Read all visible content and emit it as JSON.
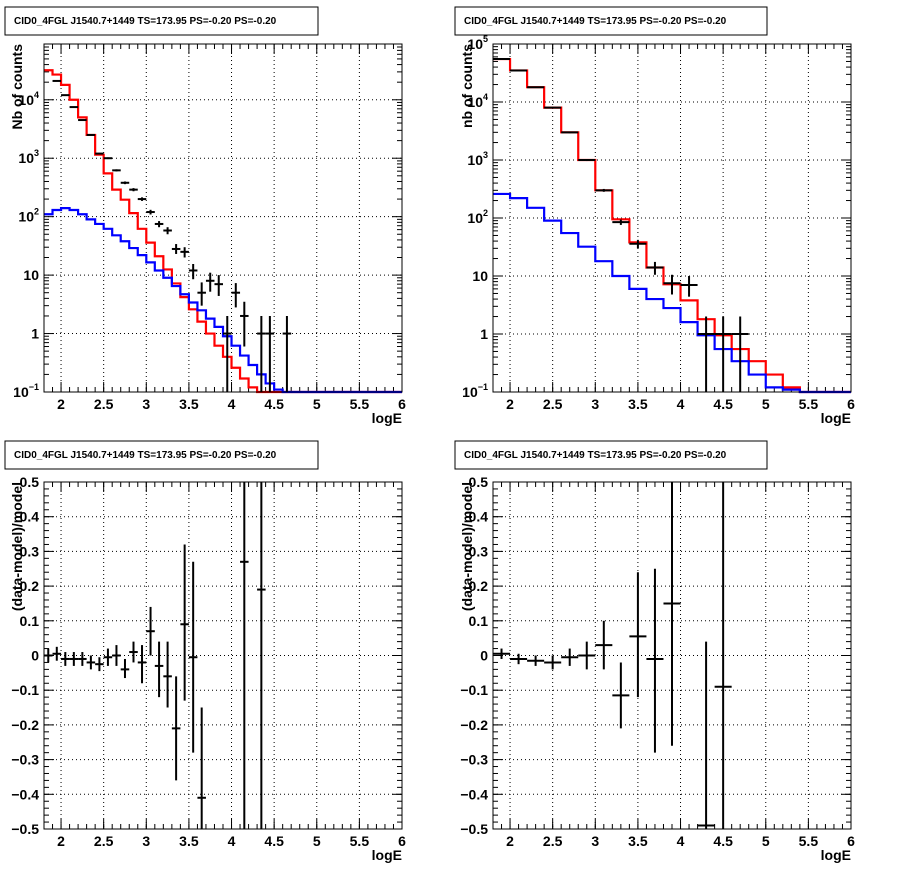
{
  "chart_data": [
    {
      "type": "histogram",
      "title": "CID0_4FGL J1540.7+1449 TS=173.95 PS=-0.20 PS=-0.20",
      "xlabel": "logE",
      "ylabel": "Nb of counts",
      "xlim": [
        1.8,
        6.0
      ],
      "ylim": [
        0.1,
        90000
      ],
      "yscale": "log",
      "grid": true,
      "x_tick_labels": [
        "2",
        "2.5",
        "3",
        "3.5",
        "4",
        "4.5",
        "5",
        "5.5",
        "6"
      ],
      "y_tick_labels": [
        {
          "v": 0.1,
          "base": "10",
          "exp": "−1"
        },
        {
          "v": 1,
          "base": "1",
          "exp": ""
        },
        {
          "v": 10,
          "base": "10",
          "exp": ""
        },
        {
          "v": 100,
          "base": "10",
          "exp": "2"
        },
        {
          "v": 1000,
          "base": "10",
          "exp": "3"
        },
        {
          "v": 10000,
          "base": "10",
          "exp": "4"
        }
      ],
      "bin_edges": [
        1.8,
        1.9,
        2.0,
        2.1,
        2.2,
        2.3,
        2.4,
        2.5,
        2.6,
        2.7,
        2.8,
        2.9,
        3.0,
        3.1,
        3.2,
        3.3,
        3.4,
        3.5,
        3.6,
        3.7,
        3.8,
        3.9,
        4.0,
        4.1,
        4.2,
        4.3,
        4.4,
        4.5,
        4.6,
        4.7,
        4.8,
        4.9,
        5.0,
        5.1,
        5.2,
        5.3,
        5.4,
        5.5,
        5.6,
        5.7,
        5.8,
        5.9,
        6.0
      ],
      "series": [
        {
          "color": "#ff0000",
          "values": [
            32000,
            27000,
            18000,
            10000,
            5000,
            2500,
            1150,
            550,
            290,
            195,
            115,
            62,
            36,
            21,
            12.5,
            7.2,
            4.2,
            2.6,
            1.6,
            1.0,
            0.62,
            0.4,
            0.26,
            0.17,
            0.12,
            0.1,
            0.1,
            0.1,
            0.1,
            0.1,
            0.1,
            0.1,
            0.1,
            0.1,
            0.1,
            0.1,
            0.1,
            0.1,
            0.1,
            0.1,
            0.1,
            0.1
          ]
        },
        {
          "color": "#0000ff",
          "values": [
            110,
            130,
            140,
            130,
            110,
            90,
            75,
            62,
            48,
            38,
            29,
            22,
            16.5,
            12,
            9,
            6.5,
            4.7,
            3.4,
            2.5,
            1.8,
            1.3,
            0.9,
            0.62,
            0.42,
            0.29,
            0.2,
            0.14,
            0.11,
            0.1,
            0.1,
            0.1,
            0.1,
            0.1,
            0.1,
            0.1,
            0.1,
            0.1,
            0.1,
            0.1,
            0.1,
            0.1,
            0.1
          ]
        }
      ],
      "data_points": [
        {
          "x": 1.95,
          "y": 21000,
          "ylo": 20700,
          "yhi": 21300
        },
        {
          "x": 2.05,
          "y": 12000,
          "ylo": 11800,
          "yhi": 12200
        },
        {
          "x": 2.15,
          "y": 7500,
          "ylo": 7350,
          "yhi": 7650
        },
        {
          "x": 2.25,
          "y": 4500,
          "ylo": 4400,
          "yhi": 4600
        },
        {
          "x": 2.35,
          "y": 2500,
          "ylo": 2440,
          "yhi": 2560
        },
        {
          "x": 2.45,
          "y": 1200,
          "ylo": 1165,
          "yhi": 1235
        },
        {
          "x": 2.55,
          "y": 1000,
          "ylo": 968,
          "yhi": 1032
        },
        {
          "x": 2.65,
          "y": 620,
          "ylo": 595,
          "yhi": 645
        },
        {
          "x": 2.75,
          "y": 380,
          "ylo": 360,
          "yhi": 400
        },
        {
          "x": 2.85,
          "y": 290,
          "ylo": 272,
          "yhi": 308
        },
        {
          "x": 2.95,
          "y": 200,
          "ylo": 186,
          "yhi": 214
        },
        {
          "x": 3.05,
          "y": 120,
          "ylo": 109,
          "yhi": 131
        },
        {
          "x": 3.15,
          "y": 75,
          "ylo": 66,
          "yhi": 84
        },
        {
          "x": 3.25,
          "y": 58,
          "ylo": 50,
          "yhi": 66
        },
        {
          "x": 3.35,
          "y": 28,
          "ylo": 23,
          "yhi": 34
        },
        {
          "x": 3.45,
          "y": 25,
          "ylo": 20,
          "yhi": 30
        },
        {
          "x": 3.55,
          "y": 12,
          "ylo": 8.5,
          "yhi": 15.5
        },
        {
          "x": 3.65,
          "y": 5,
          "ylo": 3,
          "yhi": 7.5
        },
        {
          "x": 3.75,
          "y": 8,
          "ylo": 5.2,
          "yhi": 11
        },
        {
          "x": 3.85,
          "y": 7,
          "ylo": 4.4,
          "yhi": 10
        },
        {
          "x": 3.95,
          "y": 1,
          "ylo": 0.1,
          "yhi": 2
        },
        {
          "x": 4.05,
          "y": 5,
          "ylo": 2.8,
          "yhi": 7.3
        },
        {
          "x": 4.15,
          "y": 2,
          "ylo": 0.6,
          "yhi": 3.5
        },
        {
          "x": 4.35,
          "y": 1,
          "ylo": 0.1,
          "yhi": 2
        },
        {
          "x": 4.45,
          "y": 1,
          "ylo": 0.1,
          "yhi": 2
        },
        {
          "x": 4.65,
          "y": 1,
          "ylo": 0.1,
          "yhi": 2
        }
      ]
    },
    {
      "type": "histogram",
      "title": "CID0_4FGL J1540.7+1449 TS=173.95 PS=-0.20 PS=-0.20",
      "xlabel": "logE",
      "ylabel": "nb of counts",
      "xlim": [
        1.8,
        6.0
      ],
      "ylim": [
        0.1,
        100000
      ],
      "yscale": "log",
      "grid": true,
      "x_tick_labels": [
        "2",
        "2.5",
        "3",
        "3.5",
        "4",
        "4.5",
        "5",
        "5.5",
        "6"
      ],
      "y_tick_labels": [
        {
          "v": 0.1,
          "base": "10",
          "exp": "−1"
        },
        {
          "v": 1,
          "base": "1",
          "exp": ""
        },
        {
          "v": 10,
          "base": "10",
          "exp": ""
        },
        {
          "v": 100,
          "base": "10",
          "exp": "2"
        },
        {
          "v": 1000,
          "base": "10",
          "exp": "3"
        },
        {
          "v": 10000,
          "base": "10",
          "exp": "4"
        },
        {
          "v": 100000,
          "base": "10",
          "exp": "5"
        }
      ],
      "bin_edges": [
        1.8,
        2.0,
        2.2,
        2.4,
        2.6,
        2.8,
        3.0,
        3.2,
        3.4,
        3.6,
        3.8,
        4.0,
        4.2,
        4.4,
        4.6,
        4.8,
        5.0,
        5.2,
        5.4,
        5.6,
        5.8,
        6.0
      ],
      "series": [
        {
          "color": "#ff0000",
          "values": [
            55000,
            35000,
            18000,
            8000,
            3000,
            1000,
            300,
            95,
            38,
            14,
            7.2,
            3.8,
            1.8,
            0.95,
            0.55,
            0.34,
            0.2,
            0.12,
            0.1,
            0.1,
            0.1
          ]
        },
        {
          "color": "#0000ff",
          "values": [
            260,
            220,
            150,
            90,
            55,
            32,
            18,
            10,
            6,
            4,
            2.8,
            1.6,
            0.95,
            0.55,
            0.34,
            0.2,
            0.12,
            0.11,
            0.1,
            0.1,
            0.1
          ]
        }
      ],
      "data_points": [
        {
          "x": 1.9,
          "y": 55000,
          "ylo": 54500,
          "yhi": 55500
        },
        {
          "x": 2.1,
          "y": 35000,
          "ylo": 34600,
          "yhi": 35400
        },
        {
          "x": 2.3,
          "y": 18000,
          "ylo": 17700,
          "yhi": 18300
        },
        {
          "x": 2.5,
          "y": 8000,
          "ylo": 7800,
          "yhi": 8200
        },
        {
          "x": 2.7,
          "y": 3000,
          "ylo": 2900,
          "yhi": 3100
        },
        {
          "x": 2.9,
          "y": 1000,
          "ylo": 960,
          "yhi": 1040
        },
        {
          "x": 3.1,
          "y": 300,
          "ylo": 283,
          "yhi": 317
        },
        {
          "x": 3.3,
          "y": 85,
          "ylo": 76,
          "yhi": 94
        },
        {
          "x": 3.5,
          "y": 36,
          "ylo": 30,
          "yhi": 42
        },
        {
          "x": 3.7,
          "y": 14,
          "ylo": 10.5,
          "yhi": 17.5
        },
        {
          "x": 3.9,
          "y": 7.5,
          "ylo": 4.8,
          "yhi": 10.5
        },
        {
          "x": 4.1,
          "y": 7,
          "ylo": 4.4,
          "yhi": 10
        },
        {
          "x": 4.3,
          "y": 1,
          "ylo": 0.1,
          "yhi": 2
        },
        {
          "x": 4.5,
          "y": 1,
          "ylo": 0.1,
          "yhi": 2
        },
        {
          "x": 4.7,
          "y": 1,
          "ylo": 0.1,
          "yhi": 2
        }
      ]
    },
    {
      "type": "scatter",
      "title": "CID0_4FGL J1540.7+1449 TS=173.95 PS=-0.20 PS=-0.20",
      "xlabel": "logE",
      "ylabel": "(data-model)/model",
      "xlim": [
        1.8,
        6.0
      ],
      "ylim": [
        -0.5,
        0.5
      ],
      "grid": true,
      "x_tick_labels": [
        "2",
        "2.5",
        "3",
        "3.5",
        "4",
        "4.5",
        "5",
        "5.5",
        "6"
      ],
      "y_tick_labels": [
        "−0.5",
        "−0.4",
        "−0.3",
        "−0.2",
        "−0.1",
        "0",
        "0.1",
        "0.2",
        "0.3",
        "0.4",
        "0.5"
      ],
      "points": [
        {
          "x": 1.85,
          "y": 0.0,
          "xerr": 0.05,
          "ylo": -0.02,
          "yhi": 0.02
        },
        {
          "x": 1.95,
          "y": 0.005,
          "xerr": 0.05,
          "ylo": -0.015,
          "yhi": 0.025
        },
        {
          "x": 2.05,
          "y": -0.01,
          "xerr": 0.05,
          "ylo": -0.03,
          "yhi": 0.01
        },
        {
          "x": 2.15,
          "y": -0.01,
          "xerr": 0.05,
          "ylo": -0.03,
          "yhi": 0.01
        },
        {
          "x": 2.25,
          "y": -0.01,
          "xerr": 0.05,
          "ylo": -0.03,
          "yhi": 0.01
        },
        {
          "x": 2.35,
          "y": -0.02,
          "xerr": 0.05,
          "ylo": -0.04,
          "yhi": 0.0
        },
        {
          "x": 2.45,
          "y": -0.025,
          "xerr": 0.05,
          "ylo": -0.045,
          "yhi": -0.005
        },
        {
          "x": 2.55,
          "y": -0.005,
          "xerr": 0.05,
          "ylo": -0.03,
          "yhi": 0.02
        },
        {
          "x": 2.65,
          "y": 0.0,
          "xerr": 0.05,
          "ylo": -0.03,
          "yhi": 0.03
        },
        {
          "x": 2.75,
          "y": -0.04,
          "xerr": 0.05,
          "ylo": -0.065,
          "yhi": -0.01
        },
        {
          "x": 2.85,
          "y": 0.01,
          "xerr": 0.05,
          "ylo": -0.02,
          "yhi": 0.04
        },
        {
          "x": 2.95,
          "y": -0.02,
          "xerr": 0.05,
          "ylo": -0.08,
          "yhi": 0.03
        },
        {
          "x": 3.05,
          "y": 0.07,
          "xerr": 0.05,
          "ylo": 0.0,
          "yhi": 0.14
        },
        {
          "x": 3.15,
          "y": -0.03,
          "xerr": 0.05,
          "ylo": -0.12,
          "yhi": 0.04
        },
        {
          "x": 3.25,
          "y": -0.06,
          "xerr": 0.05,
          "ylo": -0.15,
          "yhi": 0.04
        },
        {
          "x": 3.35,
          "y": -0.21,
          "xerr": 0.05,
          "ylo": -0.36,
          "yhi": -0.06
        },
        {
          "x": 3.45,
          "y": 0.09,
          "xerr": 0.05,
          "ylo": -0.13,
          "yhi": 0.32
        },
        {
          "x": 3.55,
          "y": -0.005,
          "xerr": 0.05,
          "ylo": -0.28,
          "yhi": 0.27
        },
        {
          "x": 3.65,
          "y": -0.41,
          "xerr": 0.05,
          "ylo": -0.5,
          "yhi": -0.15
        },
        {
          "x": 4.15,
          "y": 0.27,
          "xerr": 0.05,
          "ylo": -0.5,
          "yhi": 0.5
        },
        {
          "x": 4.35,
          "y": 0.19,
          "xerr": 0.05,
          "ylo": -0.5,
          "yhi": 0.5
        }
      ]
    },
    {
      "type": "scatter",
      "title": "CID0_4FGL J1540.7+1449 TS=173.95 PS=-0.20 PS=-0.20",
      "xlabel": "logE",
      "ylabel": "(data-model)/model",
      "xlim": [
        1.8,
        6.0
      ],
      "ylim": [
        -0.5,
        0.5
      ],
      "grid": true,
      "x_tick_labels": [
        "2",
        "2.5",
        "3",
        "3.5",
        "4",
        "4.5",
        "5",
        "5.5",
        "6"
      ],
      "y_tick_labels": [
        "−0.5",
        "−0.4",
        "−0.3",
        "−0.2",
        "−0.1",
        "0",
        "0.1",
        "0.2",
        "0.3",
        "0.4",
        "0.5"
      ],
      "points": [
        {
          "x": 1.9,
          "y": 0.005,
          "xerr": 0.1,
          "ylo": -0.01,
          "yhi": 0.02
        },
        {
          "x": 2.1,
          "y": -0.01,
          "xerr": 0.1,
          "ylo": -0.025,
          "yhi": 0.005
        },
        {
          "x": 2.3,
          "y": -0.015,
          "xerr": 0.1,
          "ylo": -0.03,
          "yhi": 0.0
        },
        {
          "x": 2.5,
          "y": -0.02,
          "xerr": 0.1,
          "ylo": -0.04,
          "yhi": 0.0
        },
        {
          "x": 2.7,
          "y": -0.005,
          "xerr": 0.1,
          "ylo": -0.03,
          "yhi": 0.02
        },
        {
          "x": 2.9,
          "y": 0.0,
          "xerr": 0.1,
          "ylo": -0.04,
          "yhi": 0.04
        },
        {
          "x": 3.1,
          "y": 0.03,
          "xerr": 0.1,
          "ylo": -0.04,
          "yhi": 0.1
        },
        {
          "x": 3.3,
          "y": -0.115,
          "xerr": 0.1,
          "ylo": -0.21,
          "yhi": -0.02
        },
        {
          "x": 3.5,
          "y": 0.055,
          "xerr": 0.1,
          "ylo": -0.12,
          "yhi": 0.24
        },
        {
          "x": 3.7,
          "y": -0.01,
          "xerr": 0.1,
          "ylo": -0.28,
          "yhi": 0.25
        },
        {
          "x": 3.9,
          "y": 0.15,
          "xerr": 0.1,
          "ylo": -0.26,
          "yhi": 0.5
        },
        {
          "x": 4.3,
          "y": -0.49,
          "xerr": 0.1,
          "ylo": -0.5,
          "yhi": 0.04
        },
        {
          "x": 4.5,
          "y": -0.09,
          "xerr": 0.1,
          "ylo": -0.5,
          "yhi": 0.5
        }
      ]
    }
  ]
}
